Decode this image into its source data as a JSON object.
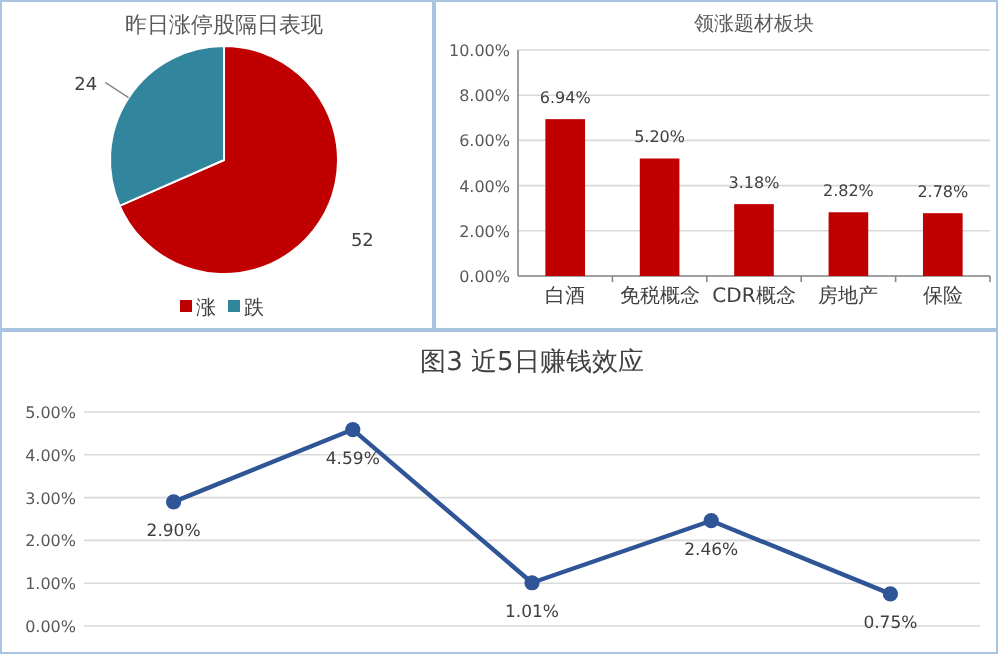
{
  "chart_data": [
    {
      "type": "pie",
      "title": "昨日涨停股隔日表现",
      "categories": [
        "涨",
        "跌"
      ],
      "values": [
        52,
        24
      ],
      "colors": [
        "#c00000",
        "#31859c"
      ],
      "data_labels": true,
      "legend": "bottom"
    },
    {
      "type": "bar",
      "title": "领涨题材板块",
      "categories": [
        "白酒",
        "免税概念",
        "CDR概念",
        "房地产",
        "保险"
      ],
      "values": [
        6.94,
        5.2,
        3.18,
        2.82,
        2.78
      ],
      "color": "#c00000",
      "value_labels": [
        "6.94%",
        "5.20%",
        "3.18%",
        "2.82%",
        "2.78%"
      ],
      "ylim": [
        0,
        10
      ],
      "yticks": [
        {
          "value": 0,
          "label": "0.00%"
        },
        {
          "value": 2,
          "label": "2.00%"
        },
        {
          "value": 4,
          "label": "4.00%"
        },
        {
          "value": 6,
          "label": "6.00%"
        },
        {
          "value": 8,
          "label": "8.00%"
        },
        {
          "value": 10,
          "label": "10.00%"
        }
      ],
      "grid": "y"
    },
    {
      "type": "line",
      "title": "图3 近5日赚钱效应",
      "categories": [
        null,
        null,
        null,
        null,
        null
      ],
      "values": [
        2.9,
        4.59,
        1.01,
        2.46,
        0.75
      ],
      "color": "#2f5597",
      "value_labels": [
        "2.90%",
        "4.59%",
        "1.01%",
        "2.46%",
        "0.75%"
      ],
      "marker": "circle",
      "line_style": "solid",
      "ylim": [
        0,
        5
      ],
      "yticks": [
        {
          "value": 0,
          "label": "0.00%"
        },
        {
          "value": 1,
          "label": "1.00%"
        },
        {
          "value": 2,
          "label": "2.00%"
        },
        {
          "value": 3,
          "label": "3.00%"
        },
        {
          "value": 4,
          "label": "4.00%"
        },
        {
          "value": 5,
          "label": "5.00%"
        }
      ],
      "grid": "y"
    }
  ]
}
